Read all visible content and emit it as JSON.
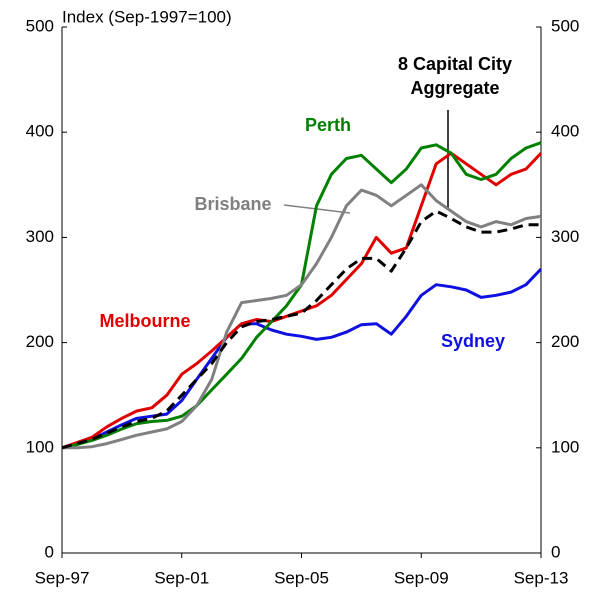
{
  "chart_data": {
    "type": "line",
    "y_label": "Index (Sep-1997=100)",
    "categories": [
      "Sep-97",
      null,
      null,
      null,
      null,
      null,
      null,
      null,
      "Sep-01",
      null,
      null,
      null,
      null,
      null,
      null,
      null,
      "Sep-05",
      null,
      null,
      null,
      null,
      null,
      null,
      null,
      "Sep-09",
      null,
      null,
      null,
      null,
      null,
      null,
      null,
      "Sep-13"
    ],
    "series": [
      {
        "name": "Sydney",
        "color": "#1010e0",
        "dash": false,
        "values": [
          100,
          104,
          108,
          115,
          122,
          128,
          130,
          132,
          145,
          165,
          185,
          205,
          218,
          218,
          212,
          208,
          206,
          203,
          205,
          210,
          217,
          218,
          208,
          225,
          245,
          255,
          253,
          250,
          243,
          245,
          248,
          255,
          270
        ]
      },
      {
        "name": "Melbourne",
        "color": "#e00000",
        "dash": false,
        "values": [
          100,
          105,
          110,
          120,
          128,
          135,
          138,
          150,
          170,
          180,
          192,
          205,
          218,
          222,
          220,
          225,
          230,
          235,
          245,
          260,
          275,
          300,
          285,
          290,
          330,
          370,
          380,
          370,
          360,
          350,
          360,
          365,
          380
        ]
      },
      {
        "name": "Perth",
        "color": "#008000",
        "dash": false,
        "values": [
          100,
          103,
          107,
          112,
          118,
          123,
          125,
          126,
          130,
          140,
          155,
          170,
          185,
          205,
          220,
          235,
          255,
          330,
          360,
          375,
          378,
          365,
          352,
          365,
          385,
          388,
          380,
          360,
          355,
          360,
          375,
          385,
          390
        ]
      },
      {
        "name": "Brisbane",
        "color": "#808080",
        "dash": false,
        "values": [
          100,
          100,
          101,
          104,
          108,
          112,
          115,
          118,
          125,
          140,
          165,
          210,
          238,
          240,
          242,
          245,
          255,
          275,
          300,
          330,
          345,
          340,
          330,
          340,
          350,
          335,
          325,
          315,
          310,
          315,
          312,
          318,
          320
        ]
      },
      {
        "name": "8 Capital City Aggregate",
        "color": "#000000",
        "dash": true,
        "values": [
          100,
          104,
          108,
          114,
          120,
          125,
          128,
          135,
          150,
          165,
          180,
          200,
          215,
          220,
          222,
          225,
          228,
          240,
          255,
          270,
          280,
          280,
          268,
          290,
          315,
          325,
          318,
          310,
          305,
          305,
          308,
          312,
          312
        ]
      }
    ],
    "ylim": [
      0,
      500
    ],
    "yticks": [
      0,
      100,
      200,
      300,
      400,
      500
    ],
    "y2lim": [
      0,
      500
    ],
    "y2ticks": [
      0,
      100,
      200,
      300,
      400,
      500
    ],
    "grid": false
  }
}
